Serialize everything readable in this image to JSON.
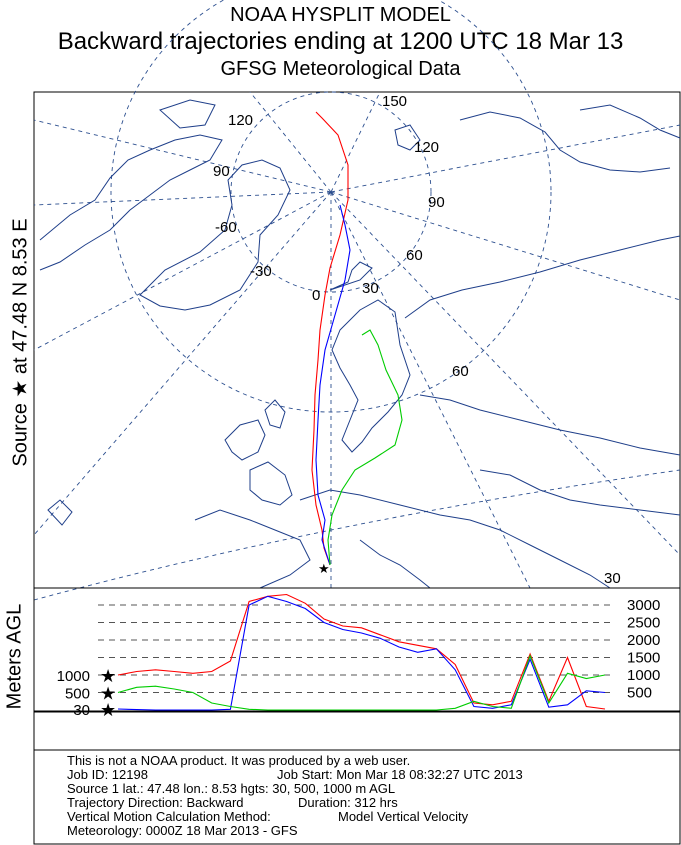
{
  "header": {
    "title1": "NOAA HYSPLIT MODEL",
    "title2": "Backward trajectories ending at 1200 UTC 18 Mar 13",
    "title3": "GFSG Meteorological Data"
  },
  "side_label": "Source ★ at   47.48 N    8.53 E",
  "meters_label": "Meters AGL",
  "map": {
    "lon_labels": [
      "150",
      "120",
      "120",
      "90",
      "90",
      "-60",
      "60",
      "-30",
      "30",
      "0",
      "60",
      "30"
    ]
  },
  "chart_data": {
    "type": "line",
    "title": "Backward trajectories ending at 1200 UTC 18 Mar 13",
    "ylabel": "Meters AGL",
    "xlabel": "",
    "x_direction": "backward",
    "duration_hrs": 312,
    "height_ticks": [
      500,
      1000,
      1500,
      2000,
      2500,
      3000
    ],
    "source_heights": [
      1000,
      500,
      30
    ],
    "ylim": [
      0,
      3300
    ],
    "x": [
      0,
      12,
      24,
      36,
      48,
      60,
      72,
      84,
      96,
      108,
      120,
      132,
      144,
      156,
      168,
      180,
      192,
      204,
      216,
      228,
      240,
      252,
      264,
      276,
      288,
      300,
      312
    ],
    "series": [
      {
        "color": "#ff0000",
        "values": [
          1000,
          1100,
          1150,
          1100,
          1050,
          1100,
          1400,
          3100,
          3250,
          3300,
          3050,
          2600,
          2400,
          2350,
          2150,
          1950,
          1850,
          1750,
          1300,
          200,
          150,
          250,
          1600,
          250,
          1500,
          100,
          30
        ]
      },
      {
        "color": "#0000ff",
        "values": [
          30,
          10,
          0,
          0,
          0,
          0,
          20,
          3000,
          3250,
          3100,
          2900,
          2500,
          2300,
          2200,
          2050,
          1800,
          1650,
          1750,
          1150,
          100,
          50,
          150,
          1450,
          80,
          150,
          550,
          500
        ]
      },
      {
        "color": "#00cc00",
        "values": [
          500,
          650,
          680,
          600,
          500,
          200,
          100,
          20,
          0,
          0,
          0,
          0,
          0,
          0,
          0,
          0,
          0,
          0,
          50,
          250,
          100,
          50,
          1550,
          200,
          1050,
          900,
          1000
        ]
      }
    ]
  },
  "info_lines": {
    "l1": "This is not a NOAA product.  It was produced by a web user.",
    "l2a": "Job ID: 12198",
    "l2b": "Job Start: Mon Mar 18 08:32:27 UTC 2013",
    "l3": "Source 1 lat.: 47.48  lon.: 8.53  hgts: 30, 500, 1000 m AGL",
    "l4a": "Trajectory Direction: Backward",
    "l4b": "Duration: 312 hrs",
    "l5a": "Vertical Motion Calculation Method:",
    "l5b": "Model Vertical Velocity",
    "l6": "Meteorology: 0000Z 18 Mar 2013 - GFS"
  }
}
